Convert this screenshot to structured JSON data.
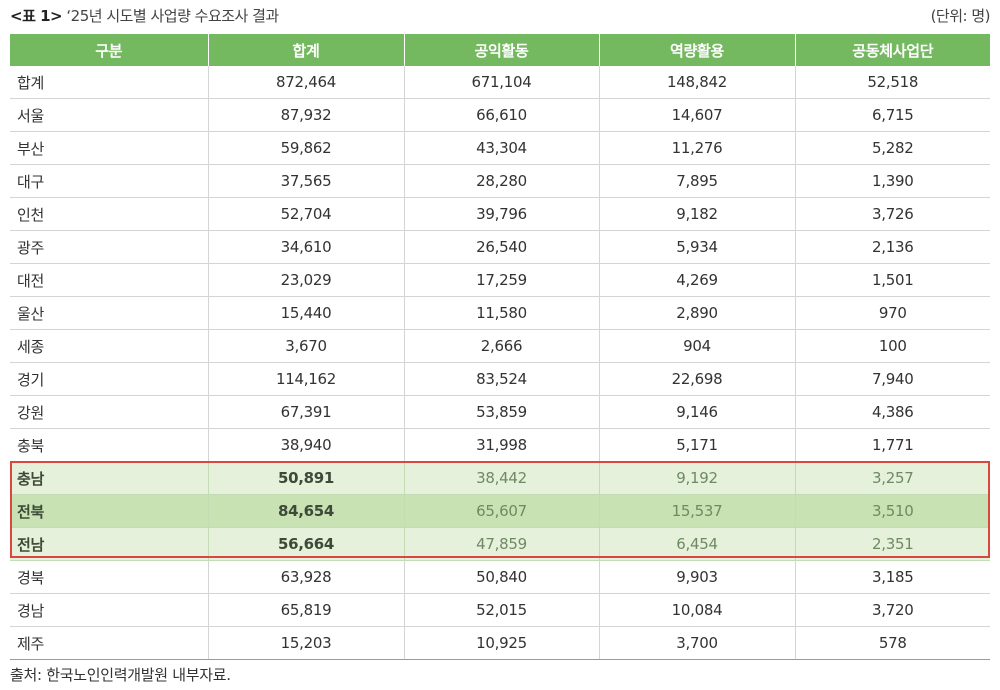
{
  "caption": {
    "label": "<표 1>",
    "title": "‘25년 시도별 사업량 수요조사 결과",
    "unit": "(단위:  명)"
  },
  "table": {
    "headers": [
      "구분",
      "합계",
      "공익활동",
      "역량활용",
      "공동체사업단"
    ],
    "rows": [
      [
        "합계",
        "872,464",
        "671,104",
        "148,842",
        "52,518"
      ],
      [
        "서울",
        "87,932",
        "66,610",
        "14,607",
        "6,715"
      ],
      [
        "부산",
        "59,862",
        "43,304",
        "11,276",
        "5,282"
      ],
      [
        "대구",
        "37,565",
        "28,280",
        "7,895",
        "1,390"
      ],
      [
        "인천",
        "52,704",
        "39,796",
        "9,182",
        "3,726"
      ],
      [
        "광주",
        "34,610",
        "26,540",
        "5,934",
        "2,136"
      ],
      [
        "대전",
        "23,029",
        "17,259",
        "4,269",
        "1,501"
      ],
      [
        "울산",
        "15,440",
        "11,580",
        "2,890",
        "970"
      ],
      [
        "세종",
        "3,670",
        "2,666",
        "904",
        "100"
      ],
      [
        "경기",
        "114,162",
        "83,524",
        "22,698",
        "7,940"
      ],
      [
        "강원",
        "67,391",
        "53,859",
        "9,146",
        "4,386"
      ],
      [
        "충북",
        "38,940",
        "31,998",
        "5,171",
        "1,771"
      ],
      [
        "충남",
        "50,891",
        "38,442",
        "9,192",
        "3,257"
      ],
      [
        "전북",
        "84,654",
        "65,607",
        "15,537",
        "3,510"
      ],
      [
        "전남",
        "56,664",
        "47,859",
        "6,454",
        "2,351"
      ],
      [
        "경북",
        "63,928",
        "50,840",
        "9,903",
        "3,185"
      ],
      [
        "경남",
        "65,819",
        "52,015",
        "10,084",
        "3,720"
      ],
      [
        "제주",
        "15,203",
        "10,925",
        "3,700",
        "578"
      ]
    ],
    "highlight_rows": [
      12,
      13,
      14
    ],
    "highlight_strong_row": 13
  },
  "colors": {
    "header_bg": "#74b860",
    "highlight_bg": "#e6f1dc",
    "highlight_strong_bg": "#c8e2b4",
    "highlight_border": "#d9473e"
  },
  "source": "출처: 한국노인인력개발원 내부자료."
}
